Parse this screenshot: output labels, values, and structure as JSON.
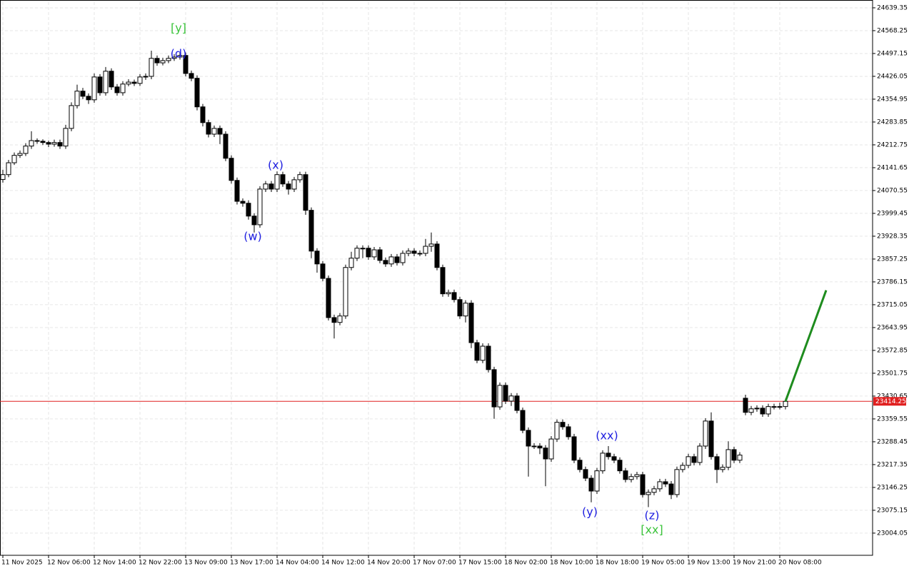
{
  "chart_data": {
    "type": "candlestick",
    "categories": [
      "11 Nov 2025",
      null,
      null,
      null,
      null,
      null,
      null,
      null,
      "12 Nov 06:00",
      null,
      null,
      null,
      null,
      null,
      null,
      null,
      "12 Nov 14:00",
      null,
      null,
      null,
      null,
      null,
      null,
      null,
      "12 Nov 22:00",
      null,
      null,
      null,
      null,
      null,
      null,
      null,
      "13 Nov 09:00",
      null,
      null,
      null,
      null,
      null,
      null,
      null,
      "13 Nov 17:00",
      null,
      null,
      null,
      null,
      null,
      null,
      null,
      "14 Nov 04:00",
      null,
      null,
      null,
      null,
      null,
      null,
      null,
      "14 Nov 12:00",
      null,
      null,
      null,
      null,
      null,
      null,
      null,
      "14 Nov 20:00",
      null,
      null,
      null,
      null,
      null,
      null,
      null,
      "17 Nov 07:00",
      null,
      null,
      null,
      null,
      null,
      null,
      null,
      "17 Nov 15:00",
      null,
      null,
      null,
      null,
      null,
      null,
      null,
      "18 Nov 02:00",
      null,
      null,
      null,
      null,
      null,
      null,
      null,
      "18 Nov 10:00",
      null,
      null,
      null,
      null,
      null,
      null,
      null,
      "18 Nov 18:00",
      null,
      null,
      null,
      null,
      null,
      null,
      null,
      "19 Nov 05:00",
      null,
      null,
      null,
      null,
      null,
      null,
      null,
      "19 Nov 13:00",
      null,
      null,
      null,
      null,
      null,
      null,
      null,
      "19 Nov 21:00",
      null,
      null,
      null,
      null,
      null,
      null,
      null,
      "20 Nov 08:00",
      null
    ],
    "open": [
      24105,
      24120,
      24157,
      24180,
      24186,
      24209,
      24226,
      24224,
      24220,
      24215,
      24220,
      24209,
      24264,
      24335,
      24380,
      24364,
      24353,
      24424,
      24375,
      24442,
      24393,
      24375,
      24402,
      24408,
      24404,
      24424,
      24426,
      24482,
      24468,
      24475,
      24482,
      24486,
      24491,
      24435,
      24420,
      24331,
      24282,
      24246,
      24264,
      24246,
      24171,
      24102,
      24037,
      24031,
      23991,
      23964,
      24075,
      24091,
      24075,
      24120,
      24091,
      24075,
      24104,
      24120,
      24009,
      23882,
      23842,
      23797,
      23675,
      23660,
      23680,
      23831,
      23860,
      23891,
      23891,
      23864,
      23886,
      23853,
      23842,
      23864,
      23846,
      23875,
      23882,
      23875,
      23875,
      23897,
      23904,
      23831,
      23749,
      23753,
      23731,
      23680,
      23720,
      23597,
      23542,
      23586,
      23513,
      23397,
      23464,
      23415,
      23431,
      23386,
      23324,
      23275,
      23275,
      23269,
      23235,
      23297,
      23349,
      23335,
      23304,
      23231,
      23202,
      23175,
      23135,
      23198,
      23253,
      23242,
      23231,
      23198,
      23171,
      23180,
      23186,
      23124,
      23131,
      23142,
      23164,
      23157,
      23124,
      23202,
      23215,
      23242,
      23224,
      23275,
      23353,
      23242,
      23202,
      23209,
      23264,
      23231,
      23424,
      23380,
      23391,
      23393,
      23375,
      23398,
      23398,
      23398
    ],
    "high": [
      24135,
      24166,
      24189,
      24195,
      24218,
      24255,
      24233,
      24230,
      24226,
      24229,
      24229,
      24275,
      24345,
      24400,
      24390,
      24373,
      24435,
      24433,
      24455,
      24451,
      24402,
      24411,
      24417,
      24416,
      24433,
      24435,
      24506,
      24491,
      24484,
      24491,
      24495,
      24500,
      24500,
      24444,
      24429,
      24340,
      24291,
      24273,
      24273,
      24255,
      24180,
      24111,
      24046,
      24040,
      24000,
      24084,
      24100,
      24100,
      24130,
      24129,
      24100,
      24113,
      24129,
      24129,
      24018,
      23891,
      23851,
      23806,
      23684,
      23689,
      23840,
      23880,
      23900,
      23900,
      23900,
      23895,
      23895,
      23862,
      23873,
      23873,
      23884,
      23891,
      23891,
      23884,
      23920,
      23940,
      23913,
      23840,
      23762,
      23762,
      23740,
      23729,
      23729,
      23606,
      23595,
      23595,
      23522,
      23473,
      23473,
      23440,
      23440,
      23395,
      23333,
      23284,
      23284,
      23278,
      23306,
      23358,
      23358,
      23344,
      23313,
      23240,
      23211,
      23184,
      23207,
      23262,
      23275,
      23251,
      23240,
      23207,
      23189,
      23195,
      23195,
      23140,
      23151,
      23173,
      23173,
      23166,
      23211,
      23224,
      23251,
      23251,
      23284,
      23362,
      23380,
      23251,
      23218,
      23290,
      23273,
      23256,
      23435,
      23400,
      23402,
      23402,
      23407,
      23407,
      23410,
      23423
    ],
    "low": [
      24095,
      24112,
      24150,
      24172,
      24178,
      24200,
      24216,
      24212,
      24206,
      24207,
      24200,
      24200,
      24255,
      24326,
      24355,
      24340,
      24344,
      24366,
      24366,
      24384,
      24366,
      24366,
      24395,
      24396,
      24396,
      24415,
      24417,
      24459,
      24460,
      24467,
      24474,
      24478,
      24426,
      24411,
      24320,
      24270,
      24236,
      24237,
      24215,
      24162,
      24092,
      24027,
      24020,
      23980,
      23940,
      23955,
      24066,
      24066,
      24066,
      24082,
      24058,
      24066,
      24095,
      23995,
      23860,
      23815,
      23788,
      23666,
      23610,
      23651,
      23671,
      23822,
      23851,
      23860,
      23855,
      23855,
      23844,
      23833,
      23833,
      23837,
      23837,
      23866,
      23866,
      23866,
      23866,
      23880,
      23822,
      23740,
      23740,
      23722,
      23671,
      23660,
      23580,
      23533,
      23533,
      23504,
      23360,
      23388,
      23406,
      23400,
      23377,
      23315,
      23180,
      23266,
      23250,
      23150,
      23226,
      23288,
      23326,
      23295,
      23222,
      23193,
      23166,
      23100,
      23126,
      23189,
      23233,
      23222,
      23189,
      23162,
      23162,
      23171,
      23115,
      23085,
      23122,
      23133,
      23148,
      23110,
      23115,
      23193,
      23206,
      23215,
      23215,
      23266,
      23233,
      23160,
      23193,
      23200,
      23222,
      23222,
      23371,
      23371,
      23382,
      23366,
      23366,
      23389,
      23389,
      23389
    ],
    "close": [
      24120,
      24157,
      24180,
      24186,
      24209,
      24226,
      24224,
      24220,
      24215,
      24220,
      24209,
      24264,
      24335,
      24380,
      24364,
      24353,
      24424,
      24375,
      24442,
      24393,
      24375,
      24402,
      24408,
      24404,
      24424,
      24426,
      24482,
      24468,
      24475,
      24482,
      24486,
      24491,
      24435,
      24420,
      24331,
      24282,
      24246,
      24264,
      24246,
      24171,
      24102,
      24037,
      24031,
      23991,
      23964,
      24075,
      24091,
      24075,
      24120,
      24091,
      24075,
      24104,
      24120,
      24009,
      23882,
      23842,
      23797,
      23675,
      23660,
      23680,
      23831,
      23860,
      23891,
      23891,
      23864,
      23886,
      23853,
      23842,
      23864,
      23846,
      23875,
      23882,
      23875,
      23875,
      23897,
      23904,
      23831,
      23749,
      23753,
      23731,
      23680,
      23720,
      23597,
      23542,
      23586,
      23513,
      23397,
      23464,
      23415,
      23431,
      23386,
      23324,
      23275,
      23275,
      23269,
      23235,
      23297,
      23349,
      23335,
      23304,
      23231,
      23202,
      23175,
      23135,
      23198,
      23253,
      23242,
      23231,
      23198,
      23171,
      23180,
      23186,
      23124,
      23131,
      23142,
      23164,
      23157,
      23124,
      23202,
      23215,
      23242,
      23224,
      23275,
      23353,
      23242,
      23202,
      23209,
      23264,
      23231,
      23247,
      23380,
      23391,
      23393,
      23375,
      23398,
      23398,
      23398,
      23414.25
    ],
    "ylim": [
      22935,
      24657
    ],
    "yticks": [
      24639.35,
      24568.25,
      24497.15,
      24426.05,
      24354.95,
      24283.85,
      24212.75,
      24141.65,
      24070.55,
      23999.45,
      23928.35,
      23857.25,
      23786.15,
      23715.05,
      23643.95,
      23572.85,
      23501.75,
      23430.65,
      23359.55,
      23288.45,
      23217.35,
      23146.25,
      23075.15,
      23004.05
    ],
    "grid": true,
    "current_price": 23414.25,
    "current_price_color": "#e02020",
    "forecast": {
      "color": "#1e8c1e",
      "values": [
        23414.25,
        23760
      ]
    },
    "annotations": [
      {
        "text": "[y]",
        "color": "#3cc43c"
      },
      {
        "text": "(d)",
        "color": "#2020e0"
      },
      {
        "text": "(x)",
        "color": "#2020e0"
      },
      {
        "text": "(w)",
        "color": "#2020e0"
      },
      {
        "text": "(xx)",
        "color": "#2020e0"
      },
      {
        "text": "(y)",
        "color": "#2020e0"
      },
      {
        "text": "(z)",
        "color": "#2020e0"
      },
      {
        "text": "[xx]",
        "color": "#3cc43c"
      }
    ]
  }
}
